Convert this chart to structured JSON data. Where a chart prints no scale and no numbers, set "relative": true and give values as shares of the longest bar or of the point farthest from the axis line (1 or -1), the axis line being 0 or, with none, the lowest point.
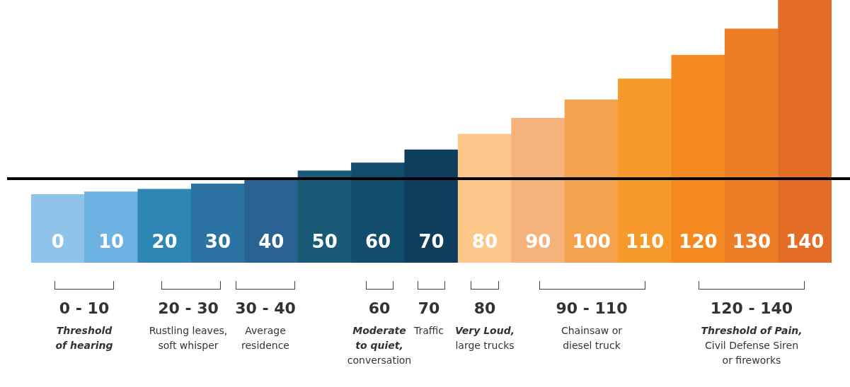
{
  "chart_data": {
    "type": "bar",
    "relative": true,
    "categories": [
      "0",
      "10",
      "20",
      "30",
      "40",
      "50",
      "60",
      "70",
      "80",
      "90",
      "100",
      "110",
      "120",
      "130",
      "140"
    ],
    "values": [
      0.26,
      0.27,
      0.28,
      0.3,
      0.32,
      0.35,
      0.38,
      0.43,
      0.49,
      0.55,
      0.62,
      0.7,
      0.79,
      0.89,
      1
    ],
    "colors": [
      "#90c3ea",
      "#6cb2e2",
      "#2e86b5",
      "#2a73a3",
      "#2a6393",
      "#1b5a77",
      "#134d6e",
      "#0f3e5c",
      "#fdc78a",
      "#f5b27a",
      "#f5a24f",
      "#f79a2b",
      "#f58a22",
      "#ee7d28",
      "#e46d26"
    ],
    "ref_lines": [
      {
        "axis": "y",
        "value": 0.32,
        "color": "#000000"
      }
    ],
    "annotations": [
      "0 - 10",
      "Threshold\nof hearing",
      "20 - 30",
      "Rustling leaves,\nsoft whisper",
      "30 - 40",
      "Average\nresidence",
      "60",
      "Moderate\nto quiet,\nconversation",
      "70",
      "Traffic",
      "80",
      "Very Loud,\nlarge trucks",
      "90 - 110",
      "Chainsaw or\ndiesel truck",
      "120 - 140",
      "Threshold of Pain,\nCivil Defense Siren\nor fireworks"
    ]
  }
}
